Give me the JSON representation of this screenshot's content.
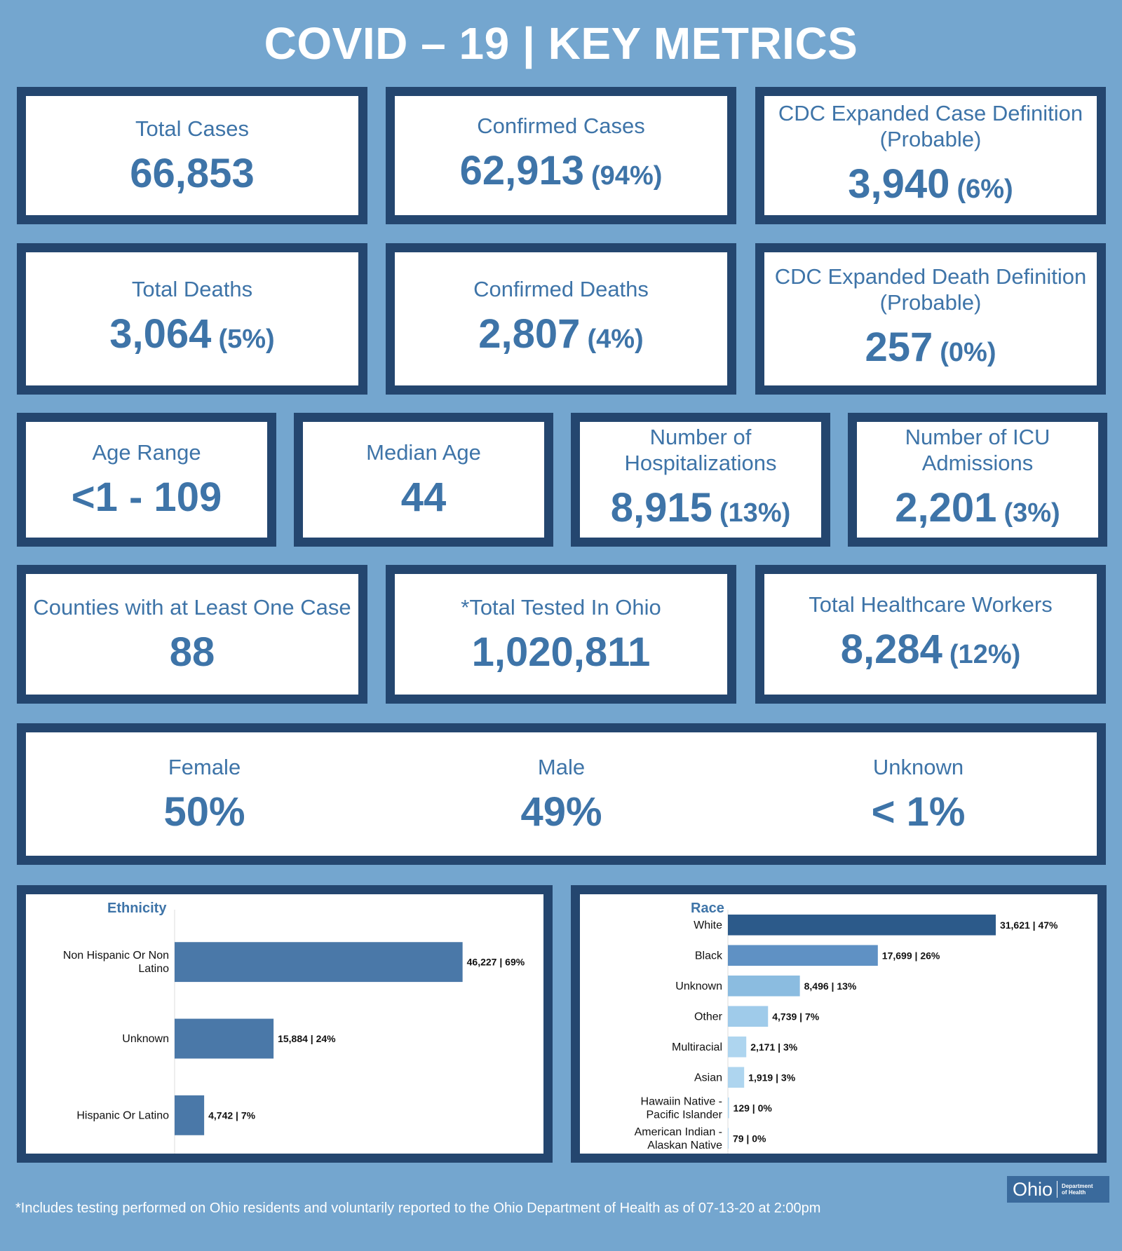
{
  "title": "COVID – 19 | KEY METRICS",
  "metrics": {
    "total_cases": {
      "label": "Total Cases",
      "value": "66,853"
    },
    "confirmed_cases": {
      "label": "Confirmed Cases",
      "value": "62,913",
      "pct": "(94%)"
    },
    "probable_cases": {
      "label": "CDC Expanded Case Definition (Probable)",
      "value": "3,940",
      "pct": "(6%)"
    },
    "total_deaths": {
      "label": "Total Deaths",
      "value": "3,064",
      "pct": "(5%)"
    },
    "confirmed_deaths": {
      "label": "Confirmed Deaths",
      "value": "2,807",
      "pct": "(4%)"
    },
    "probable_deaths": {
      "label": "CDC Expanded Death Definition (Probable)",
      "value": "257",
      "pct": "(0%)"
    },
    "age_range": {
      "label": "Age Range",
      "value": "<1 - 109"
    },
    "median_age": {
      "label": "Median Age",
      "value": "44"
    },
    "hospitalizations": {
      "label": "Number of Hospitalizations",
      "value": "8,915",
      "pct": "(13%)"
    },
    "icu": {
      "label": "Number of ICU Admissions",
      "value": "2,201",
      "pct": "(3%)"
    },
    "counties": {
      "label": "Counties with at Least One Case",
      "value": "88"
    },
    "tested": {
      "label": "*Total Tested In Ohio",
      "value": "1,020,811"
    },
    "healthcare": {
      "label": "Total Healthcare Workers",
      "value": "8,284",
      "pct": "(12%)"
    }
  },
  "gender": {
    "female": {
      "label": "Female",
      "value": "50%"
    },
    "male": {
      "label": "Male",
      "value": "49%"
    },
    "unknown": {
      "label": "Unknown",
      "value": "< 1%"
    }
  },
  "chart_data": [
    {
      "type": "bar",
      "orientation": "horizontal",
      "title": "Ethnicity",
      "categories": [
        "Non Hispanic Or Non Latino",
        "Unknown",
        "Hispanic Or Latino"
      ],
      "values": [
        46227,
        15884,
        4742
      ],
      "data_labels": [
        "46,227 | 69%",
        "15,884 | 24%",
        "4,742 | 7%"
      ],
      "colors": [
        "#4a78a8",
        "#4a78a8",
        "#4a78a8"
      ],
      "xlim": [
        0,
        60000
      ]
    },
    {
      "type": "bar",
      "orientation": "horizontal",
      "title": "Race",
      "categories": [
        "White",
        "Black",
        "Unknown",
        "Other",
        "Multiracial",
        "Asian",
        "Hawaiin Native - Pacific Islander",
        "American Indian - Alaskan Native"
      ],
      "values": [
        31621,
        17699,
        8496,
        4739,
        2171,
        1919,
        129,
        79
      ],
      "data_labels": [
        "31,621 | 47%",
        "17,699 | 26%",
        "8,496 | 13%",
        "4,739 | 7%",
        "2,171 | 3%",
        "1,919 | 3%",
        "129 | 0%",
        "79 | 0%"
      ],
      "colors": [
        "#2c5a8a",
        "#5f91c4",
        "#8bbce0",
        "#9fcbea",
        "#aed5ef",
        "#aed5ef",
        "#aed5ef",
        "#aed5ef"
      ],
      "xlim": [
        0,
        37500
      ]
    }
  ],
  "footer": "*Includes testing performed on Ohio residents and voluntarily reported to the Ohio Department of Health as of 07-13-20 at 2:00pm",
  "logo": {
    "name": "Ohio",
    "sub1": "Department",
    "sub2": "of Health"
  }
}
